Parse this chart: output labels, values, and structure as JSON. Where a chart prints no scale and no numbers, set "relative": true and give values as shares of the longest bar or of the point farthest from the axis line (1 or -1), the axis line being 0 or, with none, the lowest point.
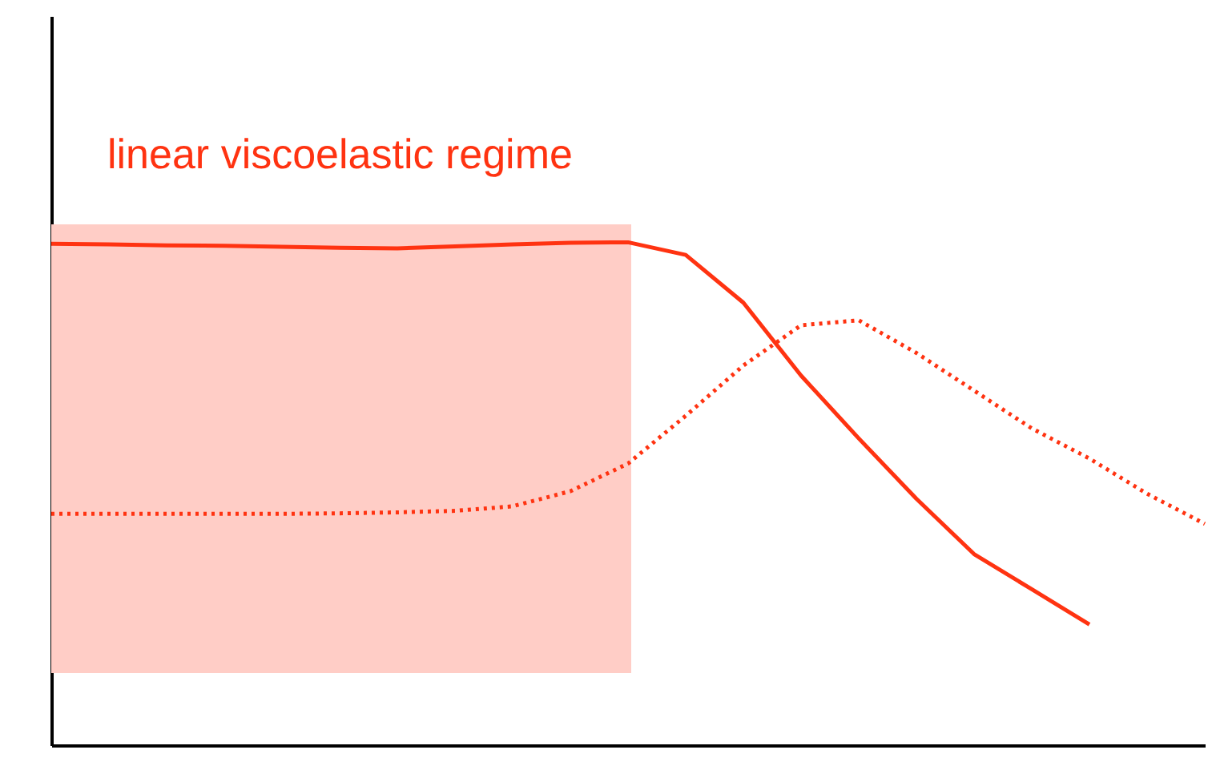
{
  "chart_data": {
    "type": "line",
    "relative": true,
    "grid": false,
    "categories": [
      null,
      null,
      null,
      null,
      null,
      null,
      null,
      null,
      null,
      null,
      null,
      null,
      null,
      null,
      null,
      null,
      null,
      null,
      null,
      null,
      null
    ],
    "series": [
      {
        "color": "#ff3311",
        "line_style": "solid",
        "values": [
          0.997,
          0.996,
          0.994,
          0.993,
          0.991,
          0.989,
          0.988,
          0.992,
          0.996,
          0.999,
          1.0,
          0.975,
          0.88,
          0.735,
          0.61,
          0.49,
          0.38,
          0.31,
          0.24,
          null,
          null
        ]
      },
      {
        "color": "#ff3311",
        "line_style": "dotted",
        "values": [
          0.46,
          0.46,
          0.46,
          0.46,
          0.46,
          0.461,
          0.463,
          0.466,
          0.475,
          0.505,
          0.56,
          0.655,
          0.755,
          0.835,
          0.845,
          0.78,
          0.705,
          0.63,
          0.57,
          0.5,
          0.44
        ]
      }
    ],
    "annotations": [
      "linear viscoelastic regime"
    ]
  }
}
